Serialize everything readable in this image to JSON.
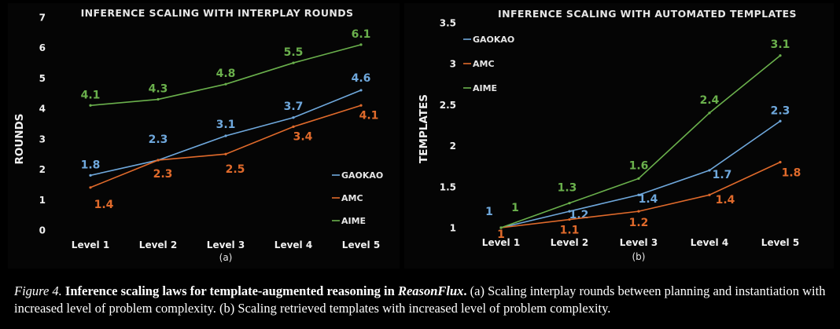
{
  "chart_data": [
    {
      "type": "line",
      "title": "INFERENCE SCALING WITH INTERPLAY ROUNDS",
      "subtitle": "(a)",
      "xlabel": "",
      "ylabel": "ROUNDS",
      "categories": [
        "Level 1",
        "Level 2",
        "Level 3",
        "Level 4",
        "Level 5"
      ],
      "ylim": [
        0,
        7
      ],
      "yticks": [
        "0",
        "1",
        "2",
        "3",
        "4",
        "5",
        "6",
        "7"
      ],
      "grid": false,
      "legend_position": "right",
      "series": [
        {
          "name": "GAOKAO",
          "color": "#6fa8dc",
          "values": [
            1.8,
            2.3,
            3.1,
            3.7,
            4.6
          ],
          "labels": [
            "1.8",
            "2.3",
            "3.1",
            "3.7",
            "4.6"
          ]
        },
        {
          "name": "AMC",
          "color": "#e06a2b",
          "values": [
            1.4,
            2.3,
            2.5,
            3.4,
            4.1
          ],
          "labels": [
            "1.4",
            "2.3",
            "2.5",
            "3.4",
            "4.1"
          ]
        },
        {
          "name": "AIME",
          "color": "#6ab04c",
          "values": [
            4.1,
            4.3,
            4.8,
            5.5,
            6.1
          ],
          "labels": [
            "4.1",
            "4.3",
            "4.8",
            "5.5",
            "6.1"
          ]
        }
      ]
    },
    {
      "type": "line",
      "title": "INFERENCE SCALING WITH AUTOMATED TEMPLATES",
      "subtitle": "(b)",
      "xlabel": "",
      "ylabel": "TEMPLATES",
      "categories": [
        "Level 1",
        "Level 2",
        "Level 3",
        "Level 4",
        "Level 5"
      ],
      "ylim": [
        1,
        3.5
      ],
      "yticks": [
        "1",
        "1.5",
        "2",
        "2.5",
        "3",
        "3.5"
      ],
      "grid": false,
      "legend_position": "top-left",
      "series": [
        {
          "name": "GAOKAO",
          "color": "#6fa8dc",
          "values": [
            1,
            1.2,
            1.4,
            1.7,
            2.3
          ],
          "labels": [
            "1",
            "1.2",
            "1.4",
            "1.7",
            "2.3"
          ]
        },
        {
          "name": "AMC",
          "color": "#e06a2b",
          "values": [
            1,
            1.1,
            1.2,
            1.4,
            1.8
          ],
          "labels": [
            "1",
            "1.1",
            "1.2",
            "1.4",
            "1.8"
          ]
        },
        {
          "name": "AIME",
          "color": "#6ab04c",
          "values": [
            1,
            1.3,
            1.6,
            2.4,
            3.1
          ],
          "labels": [
            "1",
            "1.3",
            "1.6",
            "2.4",
            "3.1"
          ]
        }
      ]
    }
  ],
  "caption": {
    "fig_label": "Figure 4.",
    "bold_text": " Inference scaling laws for template-augmented reasoning in ",
    "bold_italic": "ReasonFlux",
    "period": ".",
    "rest": " (a) Scaling interplay rounds between planning and instantiation with increased level of problem complexity. (b) Scaling retrieved templates with increased level of problem complexity."
  }
}
